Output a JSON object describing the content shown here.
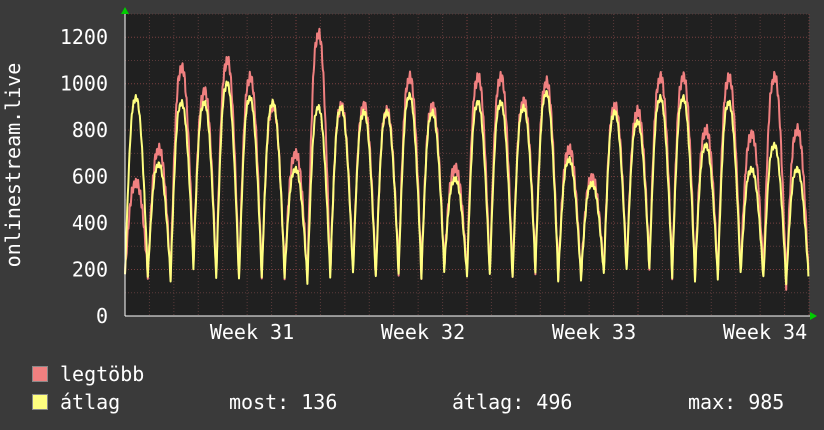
{
  "chart_data": {
    "type": "line",
    "ylabel": "onlinestream.live",
    "ylim": [
      0,
      1300
    ],
    "yticks": [
      0,
      200,
      400,
      600,
      800,
      1000,
      1200
    ],
    "x_tick_labels": [
      "Week 31",
      "Week 32",
      "Week 33",
      "Week 34"
    ],
    "grid": true,
    "x_range_days": [
      0,
      28
    ],
    "x_ticks_days": [
      7,
      14,
      21,
      28
    ],
    "series": [
      {
        "name": "legtöbb",
        "color": "#f08080",
        "daily_peaks": [
          560,
          700,
          1040,
          940,
          1070,
          1000,
          880,
          680,
          1180,
          880,
          880,
          860,
          1000,
          880,
          620,
          1000,
          1000,
          900,
          980,
          700,
          580,
          880,
          860,
          1000,
          1000,
          780,
          1000,
          760,
          1000,
          780
        ],
        "daily_mins": [
          180,
          180,
          170,
          220,
          170,
          160,
          170,
          180,
          160,
          180,
          190,
          170,
          190,
          180,
          210,
          180,
          180,
          170,
          200,
          170,
          170,
          190,
          200,
          210,
          180,
          170,
          170,
          190,
          170,
          130
        ]
      },
      {
        "name": "átlag",
        "color": "#ffff80",
        "daily_peaks": [
          920,
          640,
          900,
          900,
          980,
          920,
          900,
          620,
          880,
          880,
          860,
          860,
          930,
          860,
          580,
          900,
          900,
          880,
          940,
          660,
          560,
          860,
          820,
          920,
          920,
          720,
          900,
          620,
          720,
          620
        ],
        "daily_mins": [
          170,
          170,
          160,
          210,
          160,
          150,
          160,
          170,
          150,
          170,
          180,
          160,
          180,
          170,
          200,
          170,
          170,
          160,
          190,
          160,
          160,
          180,
          190,
          200,
          170,
          160,
          160,
          180,
          160,
          136
        ]
      }
    ]
  },
  "legend": {
    "max_label": "legtöbb",
    "avg_label": "átlag",
    "max_color": "#f08080",
    "avg_color": "#ffff80"
  },
  "stats": {
    "now": "most: 136",
    "avg": "átlag: 496",
    "max": "max: 985"
  }
}
